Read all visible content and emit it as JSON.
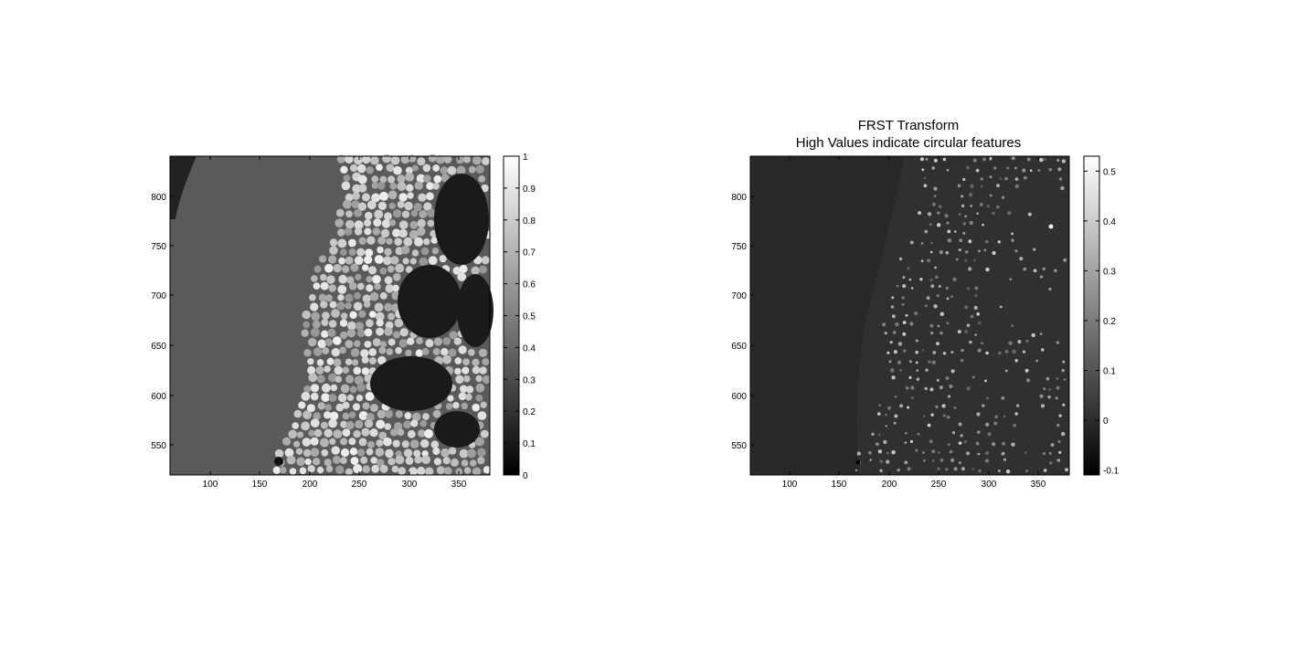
{
  "figure": {
    "left_panel": {
      "title_lines": [],
      "x_ticks": [
        "100",
        "150",
        "200",
        "250",
        "300",
        "350"
      ],
      "y_ticks": [
        "550",
        "600",
        "650",
        "700",
        "750",
        "800"
      ],
      "colorbar_ticks": [
        "0",
        "0.1",
        "0.2",
        "0.3",
        "0.4",
        "0.5",
        "0.6",
        "0.7",
        "0.8",
        "0.9",
        "1"
      ]
    },
    "right_panel": {
      "title_lines": [
        "FRST Transform",
        "High Values indicate circular features"
      ],
      "x_ticks": [
        "100",
        "150",
        "200",
        "250",
        "300",
        "350"
      ],
      "y_ticks": [
        "550",
        "600",
        "650",
        "700",
        "750",
        "800"
      ],
      "colorbar_ticks": [
        "-0.1",
        "0",
        "0.1",
        "0.2",
        "0.3",
        "0.4",
        "0.5"
      ]
    },
    "colormap": "gray",
    "colors": {
      "background": "#ffffff",
      "axis": "#000000"
    }
  }
}
